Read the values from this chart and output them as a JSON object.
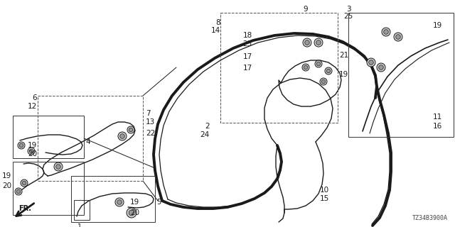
{
  "part_number": "TZ34B3900A",
  "bg_color": "#ffffff",
  "line_color": "#1a1a1a",
  "fig_w": 6.4,
  "fig_h": 3.2,
  "dpi": 100
}
